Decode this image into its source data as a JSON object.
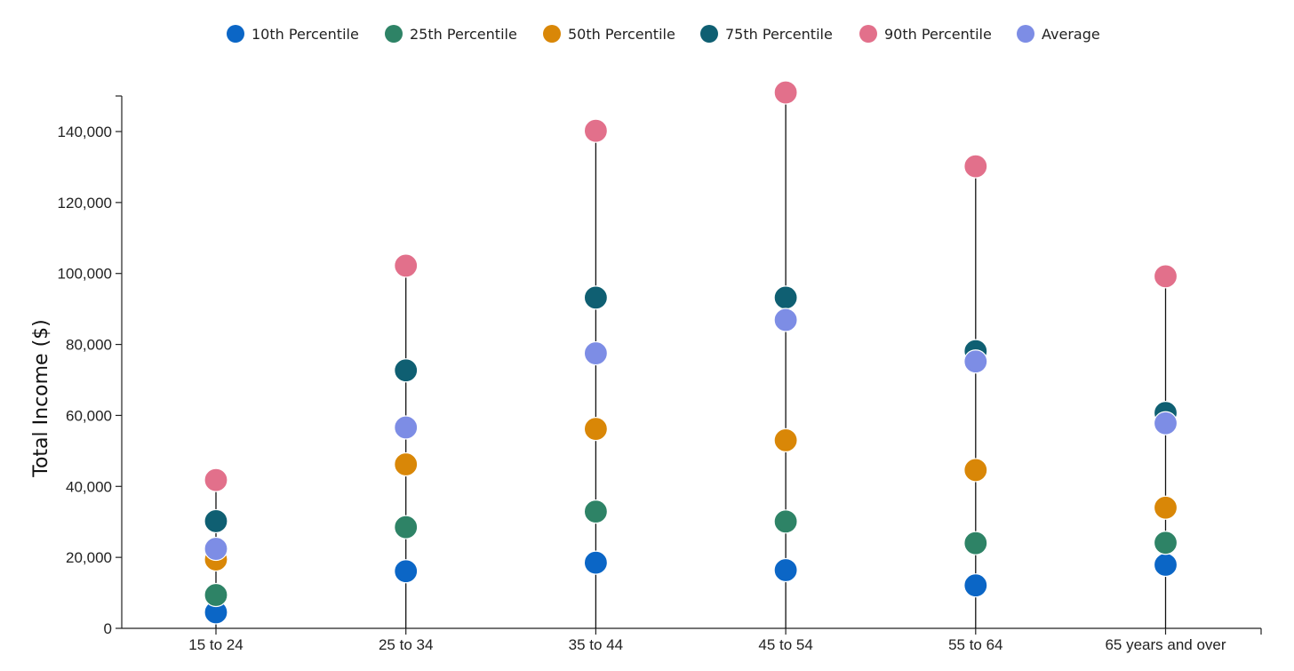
{
  "chart_data": {
    "type": "dot-range",
    "title": "",
    "xlabel": "",
    "ylabel": "Total Income ($)",
    "ylim": [
      0,
      150000
    ],
    "yticks": [
      0,
      20000,
      40000,
      60000,
      80000,
      100000,
      120000,
      140000
    ],
    "ytick_labels": [
      "0",
      "20,000",
      "40,000",
      "60,000",
      "80,000",
      "100,000",
      "120,000",
      "140,000"
    ],
    "categories": [
      "15 to 24",
      "25 to 34",
      "35 to 44",
      "45 to 54",
      "55 to 64",
      "65 years and over"
    ],
    "legend_position": "top-center",
    "grid": false,
    "series": [
      {
        "name": "10th Percentile",
        "color": "#0b66c6",
        "values": [
          4500,
          16100,
          18500,
          16400,
          12100,
          17900
        ]
      },
      {
        "name": "25th Percentile",
        "color": "#2e8366",
        "values": [
          9400,
          28500,
          32900,
          30100,
          24000,
          24100
        ]
      },
      {
        "name": "50th Percentile",
        "color": "#d98707",
        "values": [
          19400,
          46200,
          56200,
          53000,
          44600,
          34000
        ]
      },
      {
        "name": "75th Percentile",
        "color": "#0f5f72",
        "values": [
          30200,
          72700,
          93200,
          93200,
          78100,
          60700
        ]
      },
      {
        "name": "90th Percentile",
        "color": "#e2708b",
        "values": [
          41800,
          102200,
          140200,
          151000,
          130200,
          99200
        ]
      },
      {
        "name": "Average",
        "color": "#7d8de5",
        "values": [
          22400,
          56600,
          77500,
          86900,
          75200,
          57800
        ]
      }
    ]
  }
}
